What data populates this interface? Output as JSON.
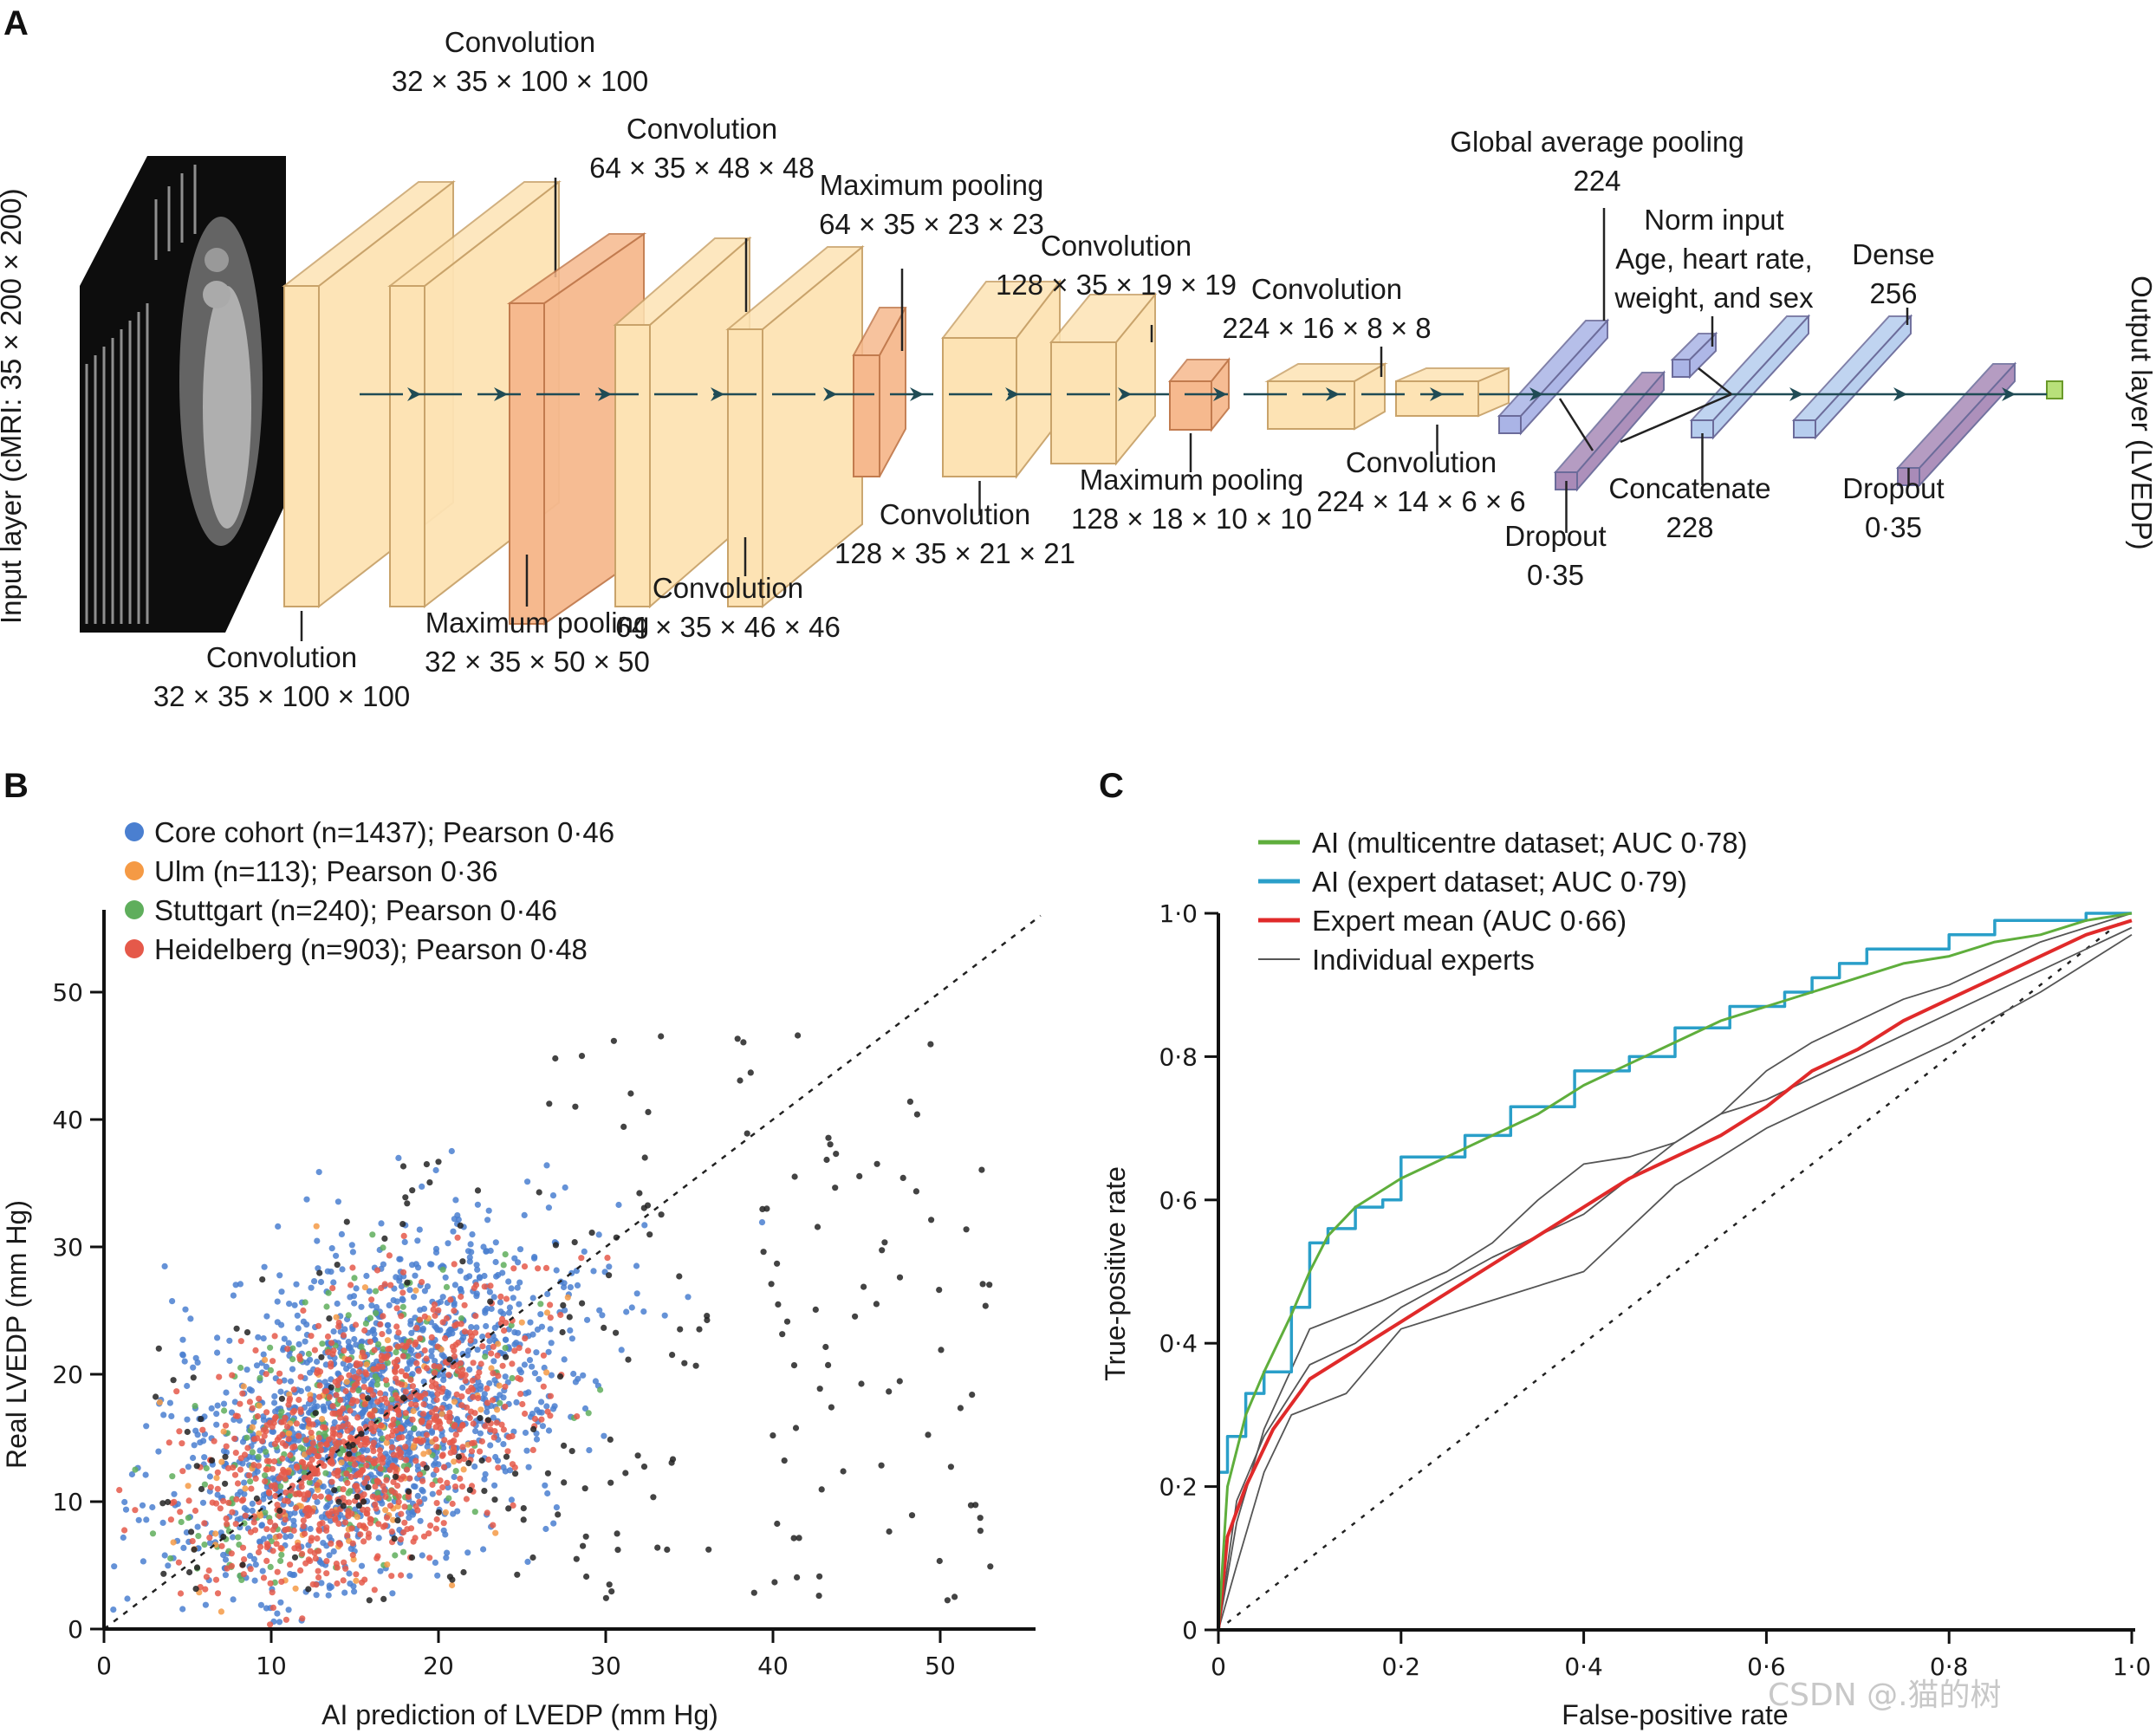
{
  "figure": {
    "watermark": "CSDN @.猫的树"
  },
  "panel_a": {
    "panel_label": "A",
    "input_label": "Input layer (cMRI: 35 × 200 × 200)",
    "output_label": "Output layer (LVEDP)",
    "colors": {
      "conv": "#fde3b4",
      "conv_edge": "#c9a36a",
      "pool": "#f6b98e",
      "pool_edge": "#c27b4e",
      "gap": "#aab4e6",
      "dropout": "#a98bb8",
      "concat": "#b6cdee",
      "output": "#b8e07a",
      "arrow": "#1f4b55"
    },
    "layers": [
      {
        "id": "conv1",
        "type": "conv",
        "name": "Convolution",
        "dims": "32 × 35 × 100 × 100",
        "label_pos": "below"
      },
      {
        "id": "conv2",
        "type": "conv",
        "name": "Convolution",
        "dims": "32 × 35 × 100 × 100",
        "label_pos": "above"
      },
      {
        "id": "pool1",
        "type": "pool",
        "name": "Maximum pooling",
        "dims": "32 × 35 × 50 × 50",
        "label_pos": "below"
      },
      {
        "id": "conv3",
        "type": "conv",
        "name": "Convolution",
        "dims": "64 × 35 × 48 × 48",
        "label_pos": "above"
      },
      {
        "id": "conv4",
        "type": "conv",
        "name": "Convolution",
        "dims": "64 × 35 × 46 × 46",
        "label_pos": "below"
      },
      {
        "id": "pool2",
        "type": "pool",
        "name": "Maximum pooling",
        "dims": "64 × 35 × 23 × 23",
        "label_pos": "above"
      },
      {
        "id": "conv5",
        "type": "conv",
        "name": "Convolution",
        "dims": "128 × 35 × 21 × 21",
        "label_pos": "below"
      },
      {
        "id": "conv6",
        "type": "conv",
        "name": "Convolution",
        "dims": "128 × 35 × 19 × 19",
        "label_pos": "above"
      },
      {
        "id": "pool3",
        "type": "pool",
        "name": "Maximum pooling",
        "dims": "128 × 18 × 10 × 10",
        "label_pos": "below"
      },
      {
        "id": "conv7",
        "type": "conv",
        "name": "Convolution",
        "dims": "224 × 16 × 8 × 8",
        "label_pos": "above"
      },
      {
        "id": "conv8",
        "type": "conv",
        "name": "Convolution",
        "dims": "224 × 14 × 6 × 6",
        "label_pos": "below"
      },
      {
        "id": "gap",
        "type": "gap",
        "name": "Global average pooling",
        "dims": "224",
        "label_pos": "above"
      },
      {
        "id": "drop1",
        "type": "dropout",
        "name": "Dropout",
        "dims": "0·35",
        "label_pos": "below"
      },
      {
        "id": "norm",
        "type": "gap",
        "name": "Norm input",
        "dims": "Age, heart rate,",
        "dims2": "weight, and sex",
        "label_pos": "above"
      },
      {
        "id": "concat",
        "type": "concat",
        "name": "Concatenate",
        "dims": "228",
        "label_pos": "below"
      },
      {
        "id": "dense",
        "type": "concat",
        "name": "Dense",
        "dims": "256",
        "label_pos": "above"
      },
      {
        "id": "drop2",
        "type": "dropout",
        "name": "Dropout",
        "dims": "0·35",
        "label_pos": "below"
      }
    ]
  },
  "panel_b": {
    "panel_label": "B",
    "chart_data": {
      "type": "scatter",
      "title": "",
      "xlabel": "AI prediction of LVEDP (mm Hg)",
      "ylabel": "Real LVEDP (mm Hg)",
      "xlim": [
        0,
        55
      ],
      "ylim": [
        0,
        55
      ],
      "xticks": [
        0,
        10,
        20,
        30,
        40,
        50
      ],
      "yticks": [
        0,
        10,
        20,
        30,
        40,
        50
      ],
      "identity_line": true,
      "grid": false,
      "legend_position": "top-left",
      "series": [
        {
          "name": "Core cohort (n=1437); Pearson 0·46",
          "color": "#4a7fd0",
          "n": 1437,
          "pearson": 0.46,
          "center": [
            16,
            17
          ],
          "spread": [
            6,
            7
          ]
        },
        {
          "name": "Ulm (n=113); Pearson 0·36",
          "color": "#f59a45",
          "n": 113,
          "pearson": 0.36,
          "center": [
            15,
            14
          ],
          "spread": [
            5,
            6
          ]
        },
        {
          "name": "Stuttgart (n=240); Pearson 0·46",
          "color": "#5fae5c",
          "n": 240,
          "pearson": 0.46,
          "center": [
            15,
            16
          ],
          "spread": [
            5,
            6
          ]
        },
        {
          "name": "Heidelberg (n=903); Pearson 0·48",
          "color": "#e5594a",
          "n": 903,
          "pearson": 0.48,
          "center": [
            15,
            14
          ],
          "spread": [
            5,
            6
          ]
        }
      ],
      "outlier_color": "#222222"
    }
  },
  "panel_c": {
    "panel_label": "C",
    "chart_data": {
      "type": "line",
      "title": "",
      "xlabel": "False-positive rate",
      "ylabel": "True-positive rate",
      "xlim": [
        0,
        1
      ],
      "ylim": [
        0,
        1
      ],
      "xticks": [
        "0",
        "0·2",
        "0·4",
        "0·6",
        "0·8",
        "1·0"
      ],
      "yticks": [
        "0",
        "0·2",
        "0·4",
        "0·6",
        "0·8",
        "1·0"
      ],
      "chance_line": true,
      "legend_position": "top-left",
      "series": [
        {
          "name": "AI (multicentre dataset; AUC 0·78)",
          "color": "#5fae3c",
          "auc": 0.78,
          "step": false,
          "x": [
            0,
            0.01,
            0.03,
            0.05,
            0.08,
            0.1,
            0.12,
            0.15,
            0.2,
            0.25,
            0.3,
            0.35,
            0.4,
            0.45,
            0.5,
            0.55,
            0.6,
            0.65,
            0.7,
            0.75,
            0.8,
            0.85,
            0.9,
            0.95,
            1.0
          ],
          "y": [
            0,
            0.2,
            0.3,
            0.36,
            0.44,
            0.5,
            0.55,
            0.59,
            0.63,
            0.66,
            0.69,
            0.72,
            0.76,
            0.79,
            0.82,
            0.85,
            0.87,
            0.89,
            0.91,
            0.93,
            0.94,
            0.96,
            0.97,
            0.99,
            1.0
          ]
        },
        {
          "name": "AI (expert dataset; AUC 0·79)",
          "color": "#2a9fc9",
          "auc": 0.79,
          "step": true,
          "x": [
            0,
            0,
            0.01,
            0.01,
            0.03,
            0.03,
            0.05,
            0.05,
            0.08,
            0.08,
            0.1,
            0.1,
            0.12,
            0.12,
            0.15,
            0.15,
            0.18,
            0.18,
            0.2,
            0.2,
            0.27,
            0.27,
            0.32,
            0.32,
            0.39,
            0.39,
            0.45,
            0.45,
            0.5,
            0.5,
            0.56,
            0.56,
            0.62,
            0.62,
            0.65,
            0.65,
            0.68,
            0.68,
            0.71,
            0.71,
            0.8,
            0.8,
            0.85,
            0.85,
            0.95,
            0.95,
            1.0
          ],
          "y": [
            0,
            0.22,
            0.22,
            0.27,
            0.27,
            0.33,
            0.33,
            0.36,
            0.36,
            0.45,
            0.45,
            0.54,
            0.54,
            0.56,
            0.56,
            0.59,
            0.59,
            0.6,
            0.6,
            0.66,
            0.66,
            0.69,
            0.69,
            0.73,
            0.73,
            0.78,
            0.78,
            0.8,
            0.8,
            0.84,
            0.84,
            0.87,
            0.87,
            0.89,
            0.89,
            0.91,
            0.91,
            0.93,
            0.93,
            0.95,
            0.95,
            0.97,
            0.97,
            0.99,
            0.99,
            1.0,
            1.0
          ]
        },
        {
          "name": "Expert mean (AUC 0·66)",
          "color": "#e02a2a",
          "auc": 0.66,
          "step": false,
          "x": [
            0,
            0.01,
            0.03,
            0.06,
            0.1,
            0.15,
            0.2,
            0.25,
            0.3,
            0.35,
            0.4,
            0.45,
            0.5,
            0.55,
            0.6,
            0.65,
            0.7,
            0.75,
            0.8,
            0.85,
            0.9,
            0.95,
            1.0
          ],
          "y": [
            0,
            0.13,
            0.2,
            0.28,
            0.35,
            0.39,
            0.43,
            0.47,
            0.51,
            0.55,
            0.59,
            0.63,
            0.66,
            0.69,
            0.73,
            0.78,
            0.81,
            0.85,
            0.88,
            0.91,
            0.94,
            0.97,
            0.99
          ]
        },
        {
          "name": "Individual experts",
          "color": "#555555",
          "auc": null,
          "step": false,
          "curves": [
            {
              "x": [
                0,
                0.02,
                0.05,
                0.1,
                0.18,
                0.25,
                0.3,
                0.35,
                0.4,
                0.45,
                0.5,
                0.55,
                0.6,
                0.65,
                0.7,
                0.75,
                0.8,
                0.9,
                1.0
              ],
              "y": [
                0,
                0.15,
                0.28,
                0.42,
                0.46,
                0.5,
                0.54,
                0.6,
                0.65,
                0.66,
                0.68,
                0.72,
                0.78,
                0.82,
                0.85,
                0.88,
                0.9,
                0.96,
                1.0
              ]
            },
            {
              "x": [
                0,
                0.02,
                0.05,
                0.08,
                0.14,
                0.2,
                0.3,
                0.4,
                0.5,
                0.55,
                0.6,
                0.7,
                0.8,
                0.9,
                1.0
              ],
              "y": [
                0,
                0.09,
                0.22,
                0.3,
                0.33,
                0.42,
                0.46,
                0.5,
                0.62,
                0.66,
                0.7,
                0.76,
                0.82,
                0.89,
                0.97
              ]
            },
            {
              "x": [
                0,
                0.02,
                0.05,
                0.1,
                0.15,
                0.2,
                0.3,
                0.4,
                0.45,
                0.5,
                0.55,
                0.6,
                0.7,
                0.8,
                0.9,
                1.0
              ],
              "y": [
                0,
                0.18,
                0.27,
                0.37,
                0.4,
                0.45,
                0.52,
                0.58,
                0.63,
                0.68,
                0.72,
                0.74,
                0.8,
                0.86,
                0.92,
                0.98
              ]
            }
          ]
        }
      ]
    }
  }
}
